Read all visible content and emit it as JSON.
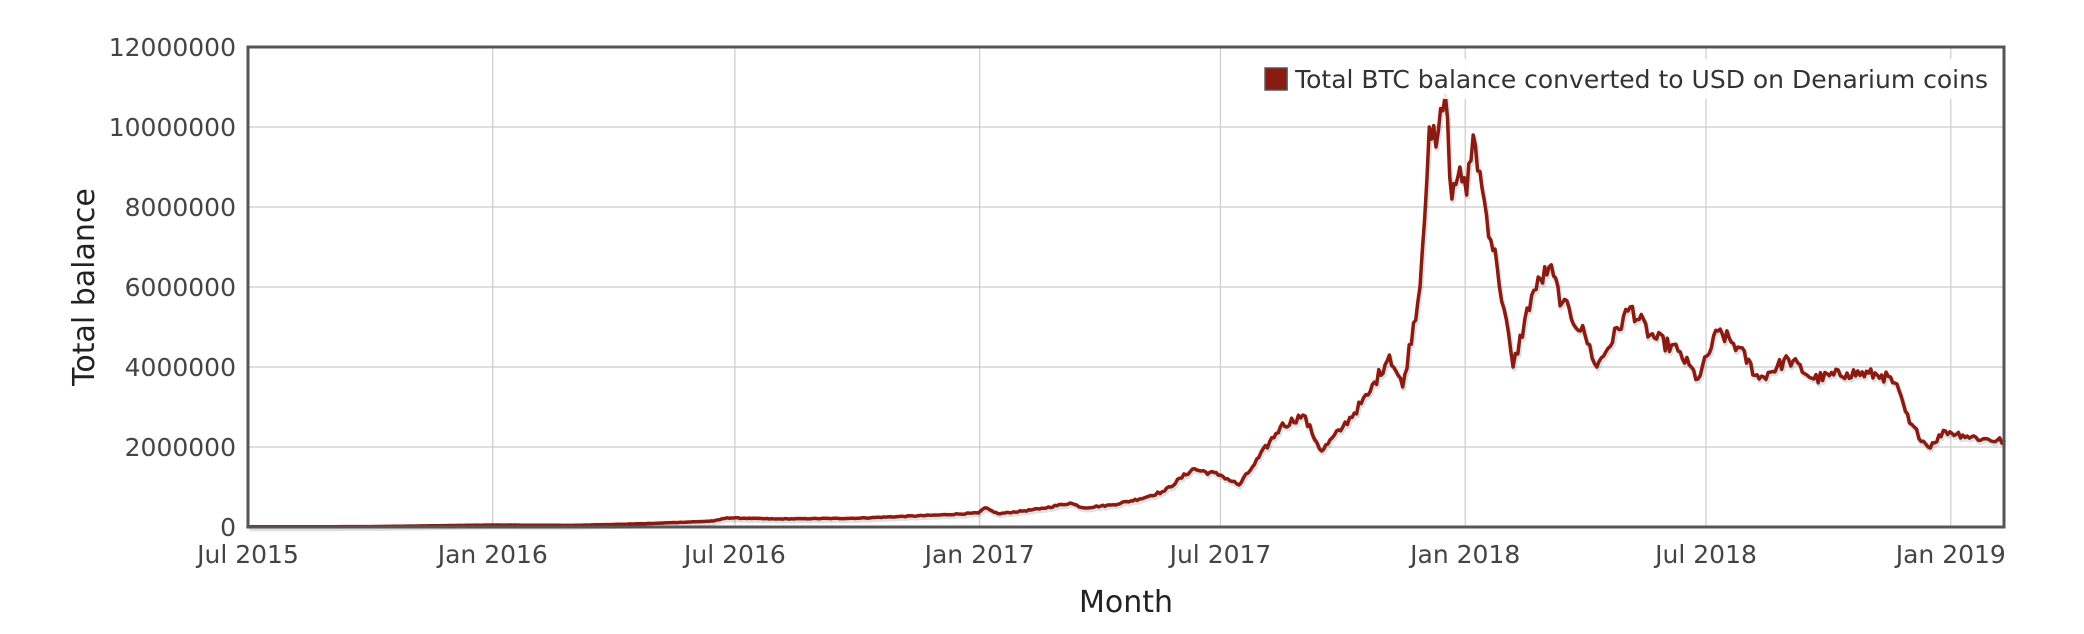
{
  "chart_data": {
    "type": "line",
    "xlabel": "Month",
    "ylabel": "Total balance",
    "x_axis": {
      "type": "date",
      "min": "2015-07-01",
      "max": "2019-02-10",
      "ticks": [
        {
          "date": "2015-07-01",
          "label": "Jul 2015"
        },
        {
          "date": "2016-01-01",
          "label": "Jan 2016"
        },
        {
          "date": "2016-07-01",
          "label": "Jul 2016"
        },
        {
          "date": "2017-01-01",
          "label": "Jan 2017"
        },
        {
          "date": "2017-07-01",
          "label": "Jul 2017"
        },
        {
          "date": "2018-01-01",
          "label": "Jan 2018"
        },
        {
          "date": "2018-07-01",
          "label": "Jul 2018"
        },
        {
          "date": "2019-01-01",
          "label": "Jan 2019"
        }
      ]
    },
    "y_axis": {
      "min": 0,
      "max": 12000000,
      "ticks": [
        {
          "value": 0,
          "label": "0"
        },
        {
          "value": 2000000,
          "label": "2000000"
        },
        {
          "value": 4000000,
          "label": "4000000"
        },
        {
          "value": 6000000,
          "label": "6000000"
        },
        {
          "value": 8000000,
          "label": "8000000"
        },
        {
          "value": 10000000,
          "label": "10000000"
        },
        {
          "value": 12000000,
          "label": "12000000"
        }
      ]
    },
    "grid": true,
    "legend": {
      "position": "top-right"
    },
    "colors": {
      "series": "#8b1a10",
      "grid": "#cccccc",
      "frame": "#555555"
    },
    "series": [
      {
        "name": "Total BTC balance converted to USD on Denarium coins",
        "points": [
          [
            "2015-07-01",
            5000
          ],
          [
            "2015-10-01",
            10000
          ],
          [
            "2016-01-01",
            50000
          ],
          [
            "2016-03-01",
            40000
          ],
          [
            "2016-05-01",
            90000
          ],
          [
            "2016-06-15",
            150000
          ],
          [
            "2016-06-25",
            230000
          ],
          [
            "2016-08-01",
            200000
          ],
          [
            "2016-10-01",
            220000
          ],
          [
            "2016-12-01",
            300000
          ],
          [
            "2016-12-31",
            350000
          ],
          [
            "2017-01-05",
            480000
          ],
          [
            "2017-01-15",
            330000
          ],
          [
            "2017-02-15",
            450000
          ],
          [
            "2017-03-10",
            600000
          ],
          [
            "2017-03-20",
            480000
          ],
          [
            "2017-04-10",
            550000
          ],
          [
            "2017-05-01",
            700000
          ],
          [
            "2017-05-20",
            900000
          ],
          [
            "2017-06-10",
            1450000
          ],
          [
            "2017-07-01",
            1300000
          ],
          [
            "2017-07-15",
            1050000
          ],
          [
            "2017-07-25",
            1500000
          ],
          [
            "2017-08-15",
            2500000
          ],
          [
            "2017-09-01",
            2800000
          ],
          [
            "2017-09-15",
            1900000
          ],
          [
            "2017-10-01",
            2500000
          ],
          [
            "2017-10-20",
            3300000
          ],
          [
            "2017-11-05",
            4300000
          ],
          [
            "2017-11-15",
            3500000
          ],
          [
            "2017-11-28",
            6000000
          ],
          [
            "2017-12-05",
            10000000
          ],
          [
            "2017-12-10",
            9500000
          ],
          [
            "2017-12-17",
            10800000
          ],
          [
            "2017-12-22",
            8200000
          ],
          [
            "2017-12-28",
            9000000
          ],
          [
            "2018-01-02",
            8300000
          ],
          [
            "2018-01-07",
            9800000
          ],
          [
            "2018-01-17",
            7800000
          ],
          [
            "2018-01-25",
            6500000
          ],
          [
            "2018-02-06",
            4000000
          ],
          [
            "2018-02-20",
            5800000
          ],
          [
            "2018-03-05",
            6500000
          ],
          [
            "2018-03-15",
            5600000
          ],
          [
            "2018-04-01",
            4800000
          ],
          [
            "2018-04-10",
            4000000
          ],
          [
            "2018-05-05",
            5500000
          ],
          [
            "2018-05-20",
            4800000
          ],
          [
            "2018-06-10",
            4400000
          ],
          [
            "2018-06-25",
            3700000
          ],
          [
            "2018-07-10",
            4900000
          ],
          [
            "2018-07-25",
            4500000
          ],
          [
            "2018-08-10",
            3700000
          ],
          [
            "2018-09-01",
            4200000
          ],
          [
            "2018-09-20",
            3700000
          ],
          [
            "2018-10-15",
            3850000
          ],
          [
            "2018-11-10",
            3800000
          ],
          [
            "2018-11-20",
            3600000
          ],
          [
            "2018-12-01",
            2600000
          ],
          [
            "2018-12-15",
            2000000
          ],
          [
            "2018-12-28",
            2400000
          ],
          [
            "2019-01-10",
            2300000
          ],
          [
            "2019-01-25",
            2200000
          ],
          [
            "2019-02-10",
            2150000
          ]
        ]
      }
    ]
  }
}
